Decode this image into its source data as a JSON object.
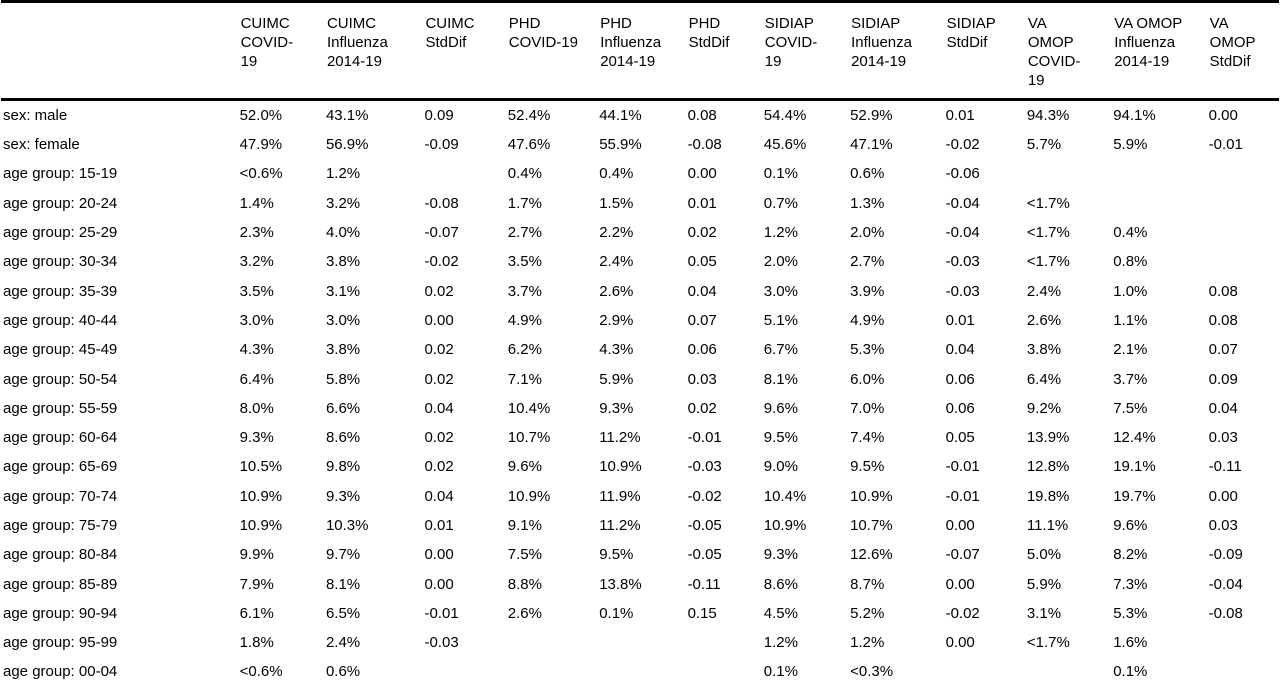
{
  "table": {
    "headers": [
      "",
      "CUIMC\nCOVID-\n19",
      "CUIMC\nInfluenza\n2014-19",
      "CUIMC\nStdDif",
      "PHD\nCOVID-19",
      "PHD\nInfluenza\n2014-19",
      "PHD\nStdDif",
      "SIDIAP\nCOVID-\n19",
      "SIDIAP\nInfluenza\n2014-19",
      "SIDIAP\nStdDif",
      "VA\nOMOP\nCOVID-\n19",
      "VA OMOP\nInfluenza\n2014-19",
      "VA\nOMOP\nStdDif"
    ],
    "rows": [
      [
        "sex: male",
        "52.0%",
        "43.1%",
        "0.09",
        "52.4%",
        "44.1%",
        "0.08",
        "54.4%",
        "52.9%",
        "0.01",
        "94.3%",
        "94.1%",
        "0.00"
      ],
      [
        "sex: female",
        "47.9%",
        "56.9%",
        "-0.09",
        "47.6%",
        "55.9%",
        "-0.08",
        "45.6%",
        "47.1%",
        "-0.02",
        "5.7%",
        "5.9%",
        "-0.01"
      ],
      [
        "age group: 15-19",
        "<0.6%",
        "1.2%",
        "",
        "0.4%",
        "0.4%",
        "0.00",
        "0.1%",
        "0.6%",
        "-0.06",
        "",
        "",
        ""
      ],
      [
        "age group: 20-24",
        "1.4%",
        "3.2%",
        "-0.08",
        "1.7%",
        "1.5%",
        "0.01",
        "0.7%",
        "1.3%",
        "-0.04",
        "<1.7%",
        "",
        ""
      ],
      [
        "age group: 25-29",
        "2.3%",
        "4.0%",
        "-0.07",
        "2.7%",
        "2.2%",
        "0.02",
        "1.2%",
        "2.0%",
        "-0.04",
        "<1.7%",
        "0.4%",
        ""
      ],
      [
        "age group: 30-34",
        "3.2%",
        "3.8%",
        "-0.02",
        "3.5%",
        "2.4%",
        "0.05",
        "2.0%",
        "2.7%",
        "-0.03",
        "<1.7%",
        "0.8%",
        ""
      ],
      [
        "age group: 35-39",
        "3.5%",
        "3.1%",
        "0.02",
        "3.7%",
        "2.6%",
        "0.04",
        "3.0%",
        "3.9%",
        "-0.03",
        "2.4%",
        "1.0%",
        "0.08"
      ],
      [
        "age group: 40-44",
        "3.0%",
        "3.0%",
        "0.00",
        "4.9%",
        "2.9%",
        "0.07",
        "5.1%",
        "4.9%",
        "0.01",
        "2.6%",
        "1.1%",
        "0.08"
      ],
      [
        "age group: 45-49",
        "4.3%",
        "3.8%",
        "0.02",
        "6.2%",
        "4.3%",
        "0.06",
        "6.7%",
        "5.3%",
        "0.04",
        "3.8%",
        "2.1%",
        "0.07"
      ],
      [
        "age group: 50-54",
        "6.4%",
        "5.8%",
        "0.02",
        "7.1%",
        "5.9%",
        "0.03",
        "8.1%",
        "6.0%",
        "0.06",
        "6.4%",
        "3.7%",
        "0.09"
      ],
      [
        "age group: 55-59",
        "8.0%",
        "6.6%",
        "0.04",
        "10.4%",
        "9.3%",
        "0.02",
        "9.6%",
        "7.0%",
        "0.06",
        "9.2%",
        "7.5%",
        "0.04"
      ],
      [
        "age group: 60-64",
        "9.3%",
        "8.6%",
        "0.02",
        "10.7%",
        "11.2%",
        "-0.01",
        "9.5%",
        "7.4%",
        "0.05",
        "13.9%",
        "12.4%",
        "0.03"
      ],
      [
        "age group: 65-69",
        "10.5%",
        "9.8%",
        "0.02",
        "9.6%",
        "10.9%",
        "-0.03",
        "9.0%",
        "9.5%",
        "-0.01",
        "12.8%",
        "19.1%",
        "-0.11"
      ],
      [
        "age group: 70-74",
        "10.9%",
        "9.3%",
        "0.04",
        "10.9%",
        "11.9%",
        "-0.02",
        "10.4%",
        "10.9%",
        "-0.01",
        "19.8%",
        "19.7%",
        "0.00"
      ],
      [
        "age group: 75-79",
        "10.9%",
        "10.3%",
        "0.01",
        "9.1%",
        "11.2%",
        "-0.05",
        "10.9%",
        "10.7%",
        "0.00",
        "11.1%",
        "9.6%",
        "0.03"
      ],
      [
        "age group: 80-84",
        "9.9%",
        "9.7%",
        "0.00",
        "7.5%",
        "9.5%",
        "-0.05",
        "9.3%",
        "12.6%",
        "-0.07",
        "5.0%",
        "8.2%",
        "-0.09"
      ],
      [
        "age group: 85-89",
        "7.9%",
        "8.1%",
        "0.00",
        "8.8%",
        "13.8%",
        "-0.11",
        "8.6%",
        "8.7%",
        "0.00",
        "5.9%",
        "7.3%",
        "-0.04"
      ],
      [
        "age group: 90-94",
        "6.1%",
        "6.5%",
        "-0.01",
        "2.6%",
        "0.1%",
        "0.15",
        "4.5%",
        "5.2%",
        "-0.02",
        "3.1%",
        "5.3%",
        "-0.08"
      ],
      [
        "age group: 95-99",
        "1.8%",
        "2.4%",
        "-0.03",
        "",
        "",
        "",
        "1.2%",
        "1.2%",
        "0.00",
        "<1.7%",
        "1.6%",
        ""
      ],
      [
        "age group: 00-04",
        "<0.6%",
        "0.6%",
        "",
        "",
        "",
        "",
        "0.1%",
        "<0.3%",
        "",
        "",
        "0.1%",
        ""
      ]
    ]
  }
}
